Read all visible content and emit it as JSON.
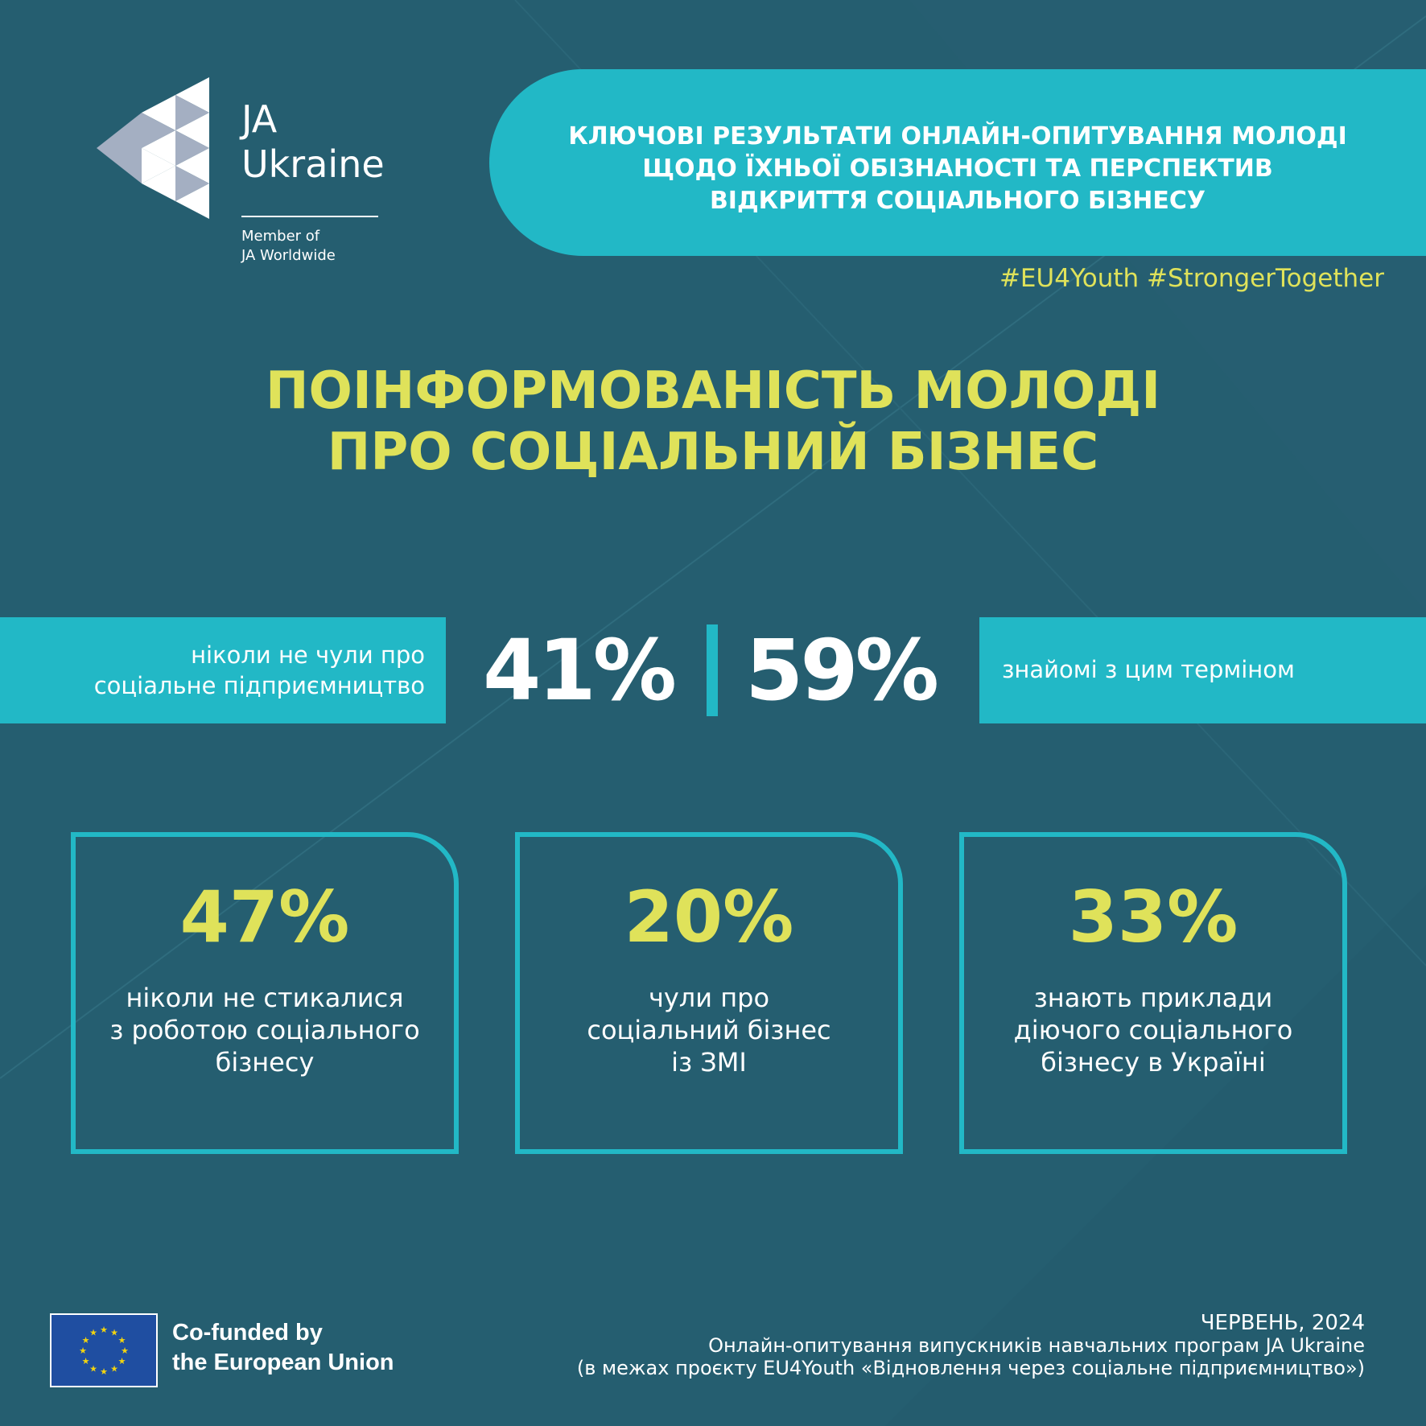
{
  "logo": {
    "line1": "JA",
    "line2": "Ukraine",
    "member_line1": "Member of",
    "member_line2": "JA Worldwide"
  },
  "header": {
    "title_line1": "КЛЮЧОВІ РЕЗУЛЬТАТИ ОНЛАЙН-ОПИТУВАННЯ МОЛОДІ",
    "title_line2": "ЩОДО ЇХНЬОЇ ОБІЗНАНОСТІ ТА ПЕРСПЕКТИВ",
    "title_line3": "ВІДКРИТТЯ СОЦІАЛЬНОГО БІЗНЕСУ",
    "hashtags": "#EU4Youth #StrongerTogether"
  },
  "main_title": {
    "line1": "ПОІНФОРМОВАНІСТЬ МОЛОДІ",
    "line2": "ПРО СОЦІАЛЬНИЙ БІЗНЕС"
  },
  "split": {
    "left_label_line1": "ніколи не чули про",
    "left_label_line2": "соціальне підприємництво",
    "left_value": "41%",
    "right_value": "59%",
    "right_label": "знайомі з цим терміном"
  },
  "cards": [
    {
      "value": "47%",
      "label_line1": "ніколи не стикалися",
      "label_line2": "з роботою соціального",
      "label_line3": "бізнесу"
    },
    {
      "value": "20%",
      "label_line1": "чули про",
      "label_line2": "соціальний бізнес",
      "label_line3": "із ЗМІ"
    },
    {
      "value": "33%",
      "label_line1": "знають приклади",
      "label_line2": "діючого соціального",
      "label_line3": "бізнесу в Україні"
    }
  ],
  "footer": {
    "eu_line1": "Co-funded by",
    "eu_line2": "the European Union",
    "date": "ЧЕРВЕНЬ, 2024",
    "source_line1": "Онлайн-опитування випускників навчальних програм JA Ukraine",
    "source_line2": "(в межах проєкту EU4Youth «Відновлення через соціальне підприємництво»)"
  },
  "colors": {
    "background": "#255e70",
    "accent_cyan": "#22b8c6",
    "accent_yellow": "#dfe25a",
    "eu_blue": "#1f4ea1",
    "eu_star": "#f2d40f"
  },
  "icons": {
    "logo_mark": "ja-triangles-icon",
    "eu_flag": "eu-flag-icon"
  }
}
